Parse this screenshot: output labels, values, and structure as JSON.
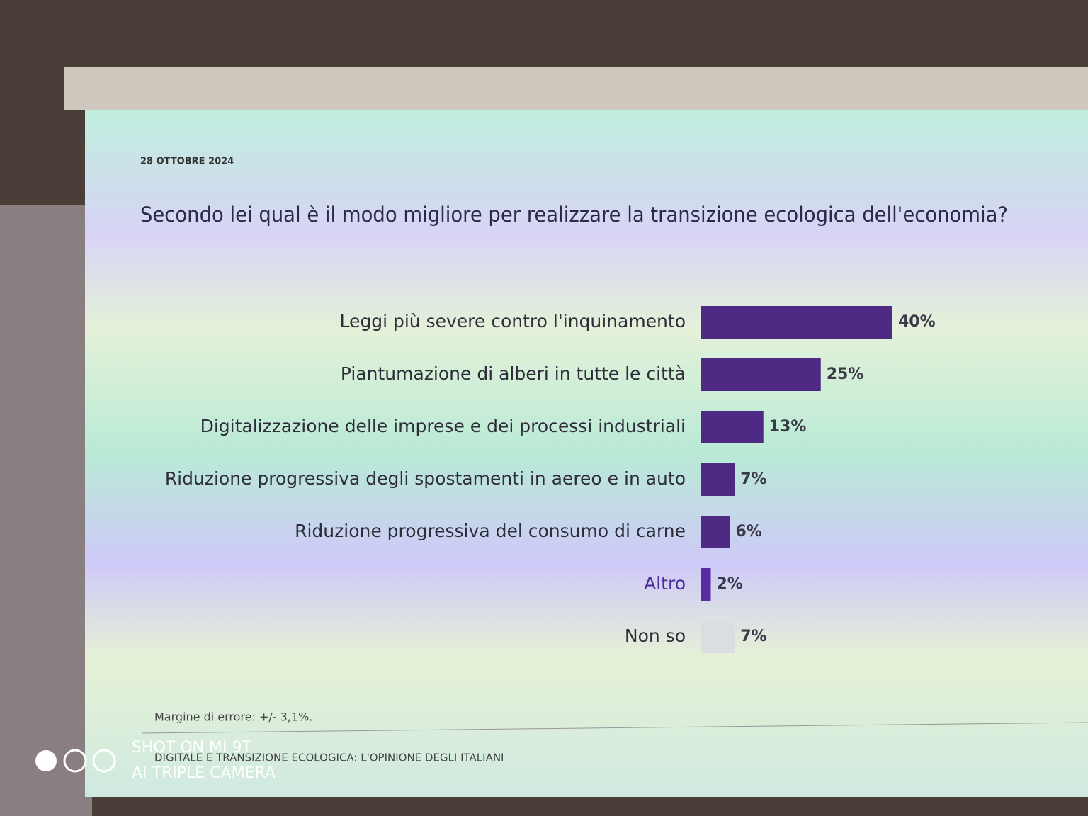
{
  "chart_data": {
    "type": "bar",
    "orientation": "horizontal",
    "date": "28 OTTOBRE 2024",
    "title": "Secondo lei qual è il modo migliore per realizzare la transizione ecologica dell'economia?",
    "categories": [
      "Leggi più severe contro l'inquinamento",
      "Piantumazione di alberi in tutte le città",
      "Digitalizzazione delle imprese e dei processi industriali",
      "Riduzione progressiva degli spostamenti in aereo e in auto",
      "Riduzione progressiva del consumo di carne",
      "Altro",
      "Non so"
    ],
    "values": [
      40,
      25,
      13,
      7,
      6,
      2,
      7
    ],
    "value_labels": [
      "40%",
      "25%",
      "13%",
      "7%",
      "6%",
      "2%",
      "7%"
    ],
    "colors": [
      "#4e2a84",
      "#4e2a84",
      "#4e2a84",
      "#4e2a84",
      "#4e2a84",
      "#5a2aa0",
      "#d9dfe0"
    ],
    "note": "Margine di errore: +/- 3,1%.",
    "footer": "DIGITALE E TRANSIZIONE ECOLOGICA: L'OPINIONE DEGLI ITALIANI",
    "watermark": [
      "SHOT ON MI 9T",
      "AI TRIPLE CAMERA"
    ]
  }
}
